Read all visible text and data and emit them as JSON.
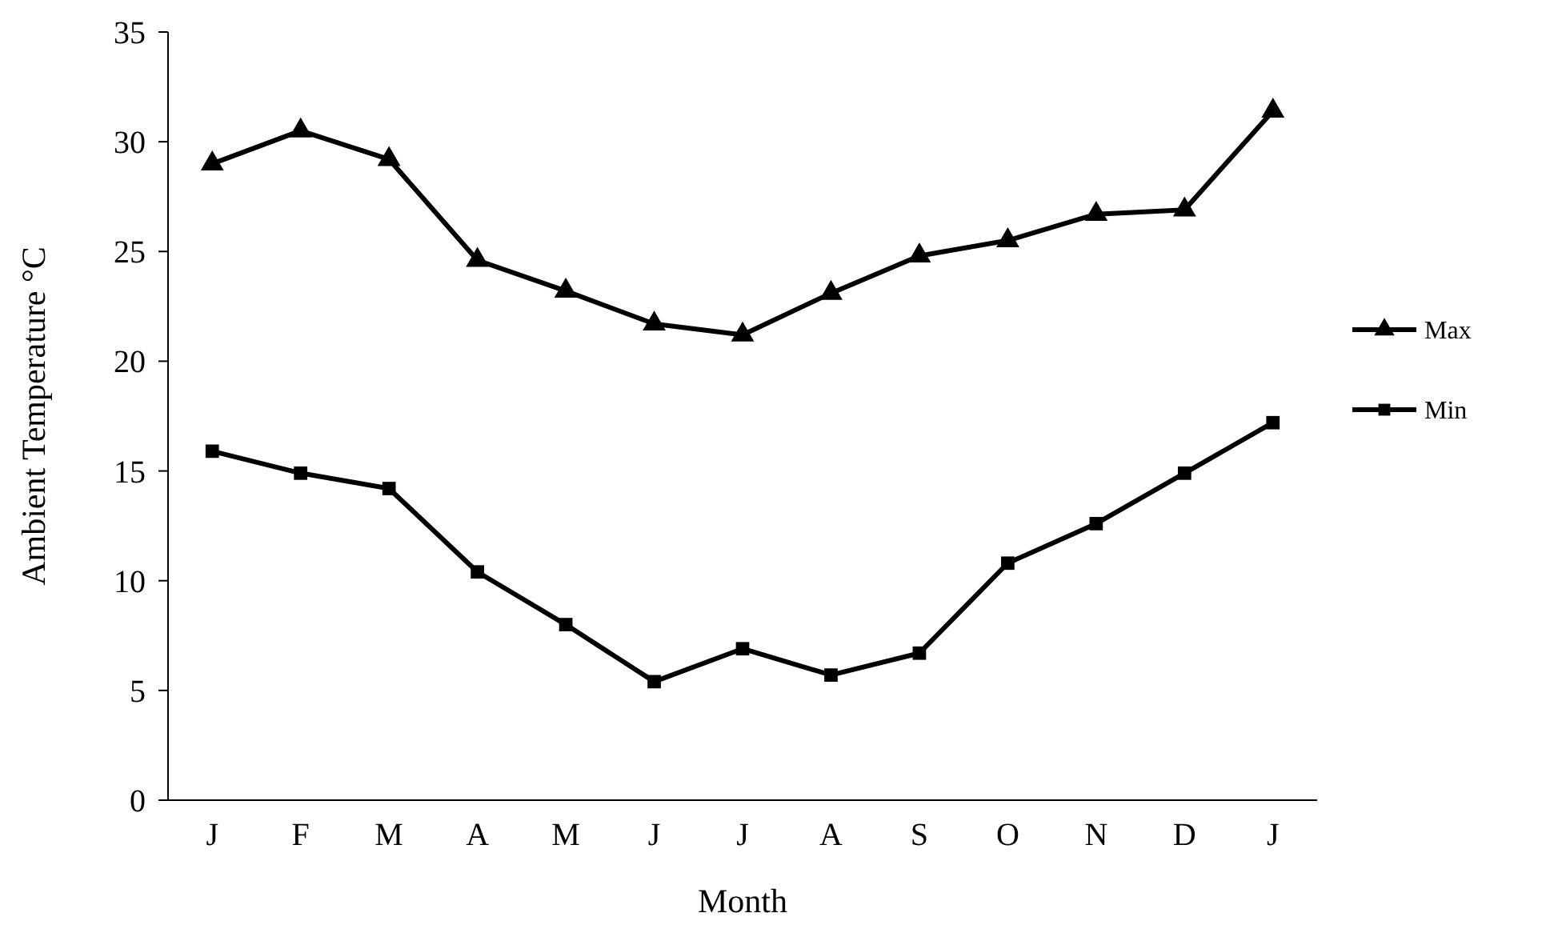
{
  "chart_data": {
    "type": "line",
    "xlabel": "Month",
    "ylabel": "Ambient Temperature °C",
    "categories": [
      "J",
      "F",
      "M",
      "A",
      "M",
      "J",
      "J",
      "A",
      "S",
      "O",
      "N",
      "D",
      "J"
    ],
    "ylim": [
      0,
      35
    ],
    "yticks": [
      0,
      5,
      10,
      15,
      20,
      25,
      30,
      35
    ],
    "grid": false,
    "legend": "right",
    "line_style": "solid",
    "series": [
      {
        "name": "Max",
        "color": "#000000",
        "marker": "triangle",
        "values": [
          29.0,
          30.5,
          29.2,
          24.6,
          23.2,
          21.7,
          21.2,
          23.1,
          24.8,
          25.5,
          26.7,
          26.9,
          31.4
        ]
      },
      {
        "name": "Min",
        "color": "#000000",
        "marker": "square",
        "values": [
          15.9,
          14.9,
          14.2,
          10.4,
          8.0,
          5.4,
          6.9,
          5.7,
          6.7,
          10.8,
          12.6,
          14.9,
          17.2
        ]
      }
    ]
  }
}
